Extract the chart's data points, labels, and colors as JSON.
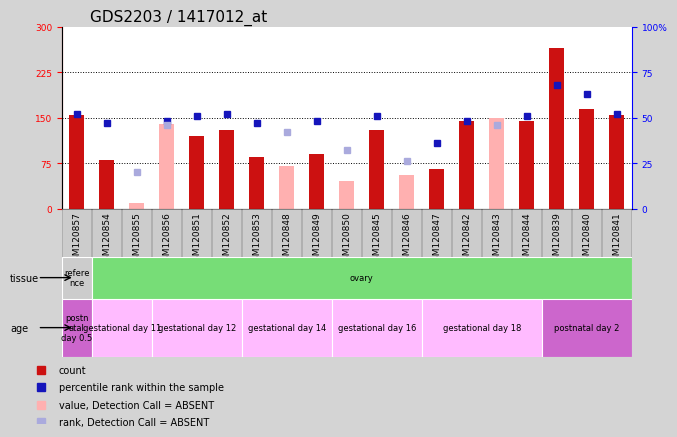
{
  "title": "GDS2203 / 1417012_at",
  "samples": [
    "GSM120857",
    "GSM120854",
    "GSM120855",
    "GSM120856",
    "GSM120851",
    "GSM120852",
    "GSM120853",
    "GSM120848",
    "GSM120849",
    "GSM120850",
    "GSM120845",
    "GSM120846",
    "GSM120847",
    "GSM120842",
    "GSM120843",
    "GSM120844",
    "GSM120839",
    "GSM120840",
    "GSM120841"
  ],
  "count_values": [
    155,
    80,
    10,
    140,
    120,
    130,
    85,
    70,
    90,
    45,
    130,
    55,
    65,
    145,
    150,
    145,
    265,
    165,
    155
  ],
  "count_absent": [
    false,
    false,
    true,
    true,
    false,
    false,
    false,
    true,
    false,
    true,
    false,
    true,
    false,
    false,
    true,
    false,
    false,
    false,
    false
  ],
  "percentile_values": [
    52,
    47,
    null,
    48,
    51,
    52,
    47,
    null,
    48,
    null,
    51,
    null,
    36,
    48,
    null,
    51,
    68,
    63,
    52
  ],
  "percentile_absent": [
    null,
    null,
    20,
    46,
    null,
    null,
    null,
    42,
    null,
    32,
    null,
    26,
    null,
    null,
    46,
    null,
    null,
    null,
    null
  ],
  "ylim_left": [
    0,
    300
  ],
  "ylim_right": [
    0,
    100
  ],
  "yticks_left": [
    0,
    75,
    150,
    225,
    300
  ],
  "yticks_right": [
    0,
    25,
    50,
    75,
    100
  ],
  "hlines": [
    75,
    150,
    225
  ],
  "red_color": "#CC1111",
  "pink_color": "#FFB0B0",
  "blue_color": "#1515BB",
  "lightblue_color": "#AAAADD",
  "tissue_row": [
    {
      "label": "refere\nnce",
      "color": "#CCCCCC",
      "span": [
        0,
        1
      ]
    },
    {
      "label": "ovary",
      "color": "#77DD77",
      "span": [
        1,
        19
      ]
    }
  ],
  "age_row": [
    {
      "label": "postn\natal\nday 0.5",
      "color": "#CC66CC",
      "span": [
        0,
        1
      ]
    },
    {
      "label": "gestational day 11",
      "color": "#FFBBFF",
      "span": [
        1,
        3
      ]
    },
    {
      "label": "gestational day 12",
      "color": "#FFBBFF",
      "span": [
        3,
        6
      ]
    },
    {
      "label": "gestational day 14",
      "color": "#FFBBFF",
      "span": [
        6,
        9
      ]
    },
    {
      "label": "gestational day 16",
      "color": "#FFBBFF",
      "span": [
        9,
        12
      ]
    },
    {
      "label": "gestational day 18",
      "color": "#FFBBFF",
      "span": [
        12,
        16
      ]
    },
    {
      "label": "postnatal day 2",
      "color": "#CC66CC",
      "span": [
        16,
        19
      ]
    }
  ],
  "legend_items": [
    {
      "label": "count",
      "color": "#CC1111"
    },
    {
      "label": "percentile rank within the sample",
      "color": "#1515BB"
    },
    {
      "label": "value, Detection Call = ABSENT",
      "color": "#FFB0B0"
    },
    {
      "label": "rank, Detection Call = ABSENT",
      "color": "#AAAADD"
    }
  ],
  "bg_color": "#D4D4D4",
  "plot_bg": "#FFFFFF",
  "title_fontsize": 11,
  "tick_fontsize": 6.5,
  "label_fontsize": 7
}
